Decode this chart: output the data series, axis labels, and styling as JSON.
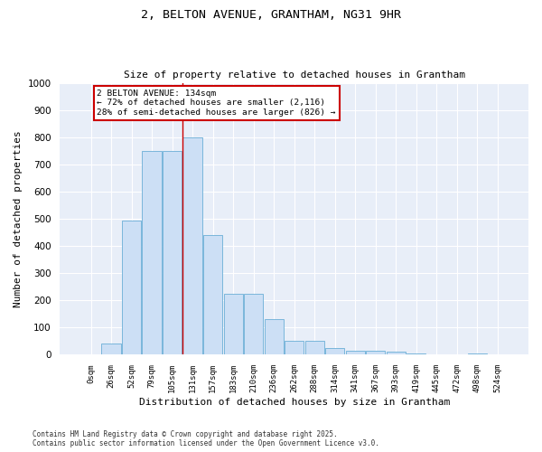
{
  "title_line1": "2, BELTON AVENUE, GRANTHAM, NG31 9HR",
  "title_line2": "Size of property relative to detached houses in Grantham",
  "xlabel": "Distribution of detached houses by size in Grantham",
  "ylabel": "Number of detached properties",
  "bar_color": "#ccdff5",
  "bar_edge_color": "#6aaed6",
  "background_color": "#e8eef8",
  "grid_color": "#ffffff",
  "categories": [
    "0sqm",
    "26sqm",
    "52sqm",
    "79sqm",
    "105sqm",
    "131sqm",
    "157sqm",
    "183sqm",
    "210sqm",
    "236sqm",
    "262sqm",
    "288sqm",
    "314sqm",
    "341sqm",
    "367sqm",
    "393sqm",
    "419sqm",
    "445sqm",
    "472sqm",
    "498sqm",
    "524sqm"
  ],
  "values": [
    0,
    42,
    495,
    750,
    750,
    800,
    440,
    225,
    225,
    130,
    52,
    52,
    25,
    15,
    14,
    10,
    5,
    0,
    0,
    6,
    0
  ],
  "ylim": [
    0,
    1000
  ],
  "yticks": [
    0,
    100,
    200,
    300,
    400,
    500,
    600,
    700,
    800,
    900,
    1000
  ],
  "property_line_idx": 5,
  "annotation_title": "2 BELTON AVENUE: 134sqm",
  "annotation_line1": "← 72% of detached houses are smaller (2,116)",
  "annotation_line2": "28% of semi-detached houses are larger (826) →",
  "annotation_box_color": "#ffffff",
  "annotation_border_color": "#cc0000",
  "line_color": "#cc0000",
  "footer_line1": "Contains HM Land Registry data © Crown copyright and database right 2025.",
  "footer_line2": "Contains public sector information licensed under the Open Government Licence v3.0."
}
